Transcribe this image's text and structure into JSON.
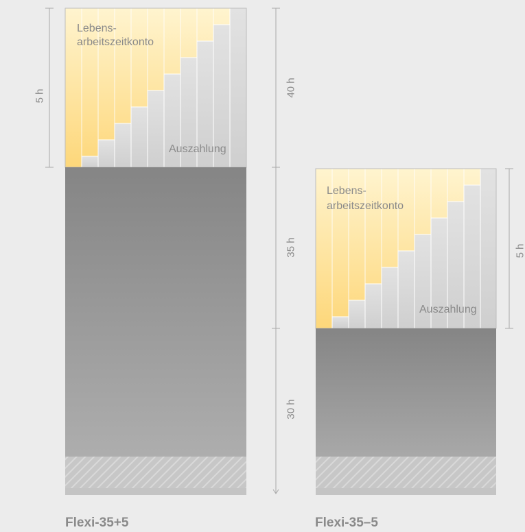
{
  "models": [
    {
      "name": "Flexi-35+5",
      "account_label_line1": "Lebens-",
      "account_label_line2": "arbeitszeitkonto",
      "payout_label": "Auszahlung",
      "side_dimension": "5 h"
    },
    {
      "name": "Flexi-35–5",
      "account_label_line1": "Lebens-",
      "account_label_line2": "arbeitszeitkonto",
      "payout_label": "Auszahlung",
      "side_dimension": "5 h"
    }
  ],
  "scale_labels": [
    "40 h",
    "35 h",
    "30 h"
  ],
  "colors": {
    "background": "#ececec",
    "work_block_top": "#858585",
    "work_block_bottom": "#b3b3b3",
    "account_yellow": "#fde59a",
    "payout_gray": "#d4d4d4",
    "text": "#8a8a8a"
  }
}
